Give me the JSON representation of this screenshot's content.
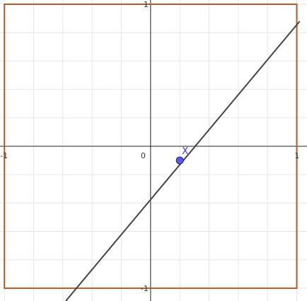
{
  "graph": {
    "x_range": [
      -1.03,
      1.07
    ],
    "y_range": [
      -1.09,
      1.03
    ],
    "gridlines_per_unit": 5,
    "axis_labels": {
      "x_neg": "-1",
      "x_pos": "1",
      "y_pos": "1",
      "y_neg": "-1",
      "origin": "0"
    },
    "square": {
      "corners": [
        [
          -1,
          -1
        ],
        [
          1,
          -1
        ],
        [
          1,
          1
        ],
        [
          -1,
          1
        ]
      ],
      "color": "#B25A2E"
    },
    "line": {
      "through": [
        [
          -0.58,
          -1.09
        ],
        [
          1.02,
          0.88
        ]
      ],
      "color": "#444444"
    },
    "point": {
      "x": 0.2,
      "y": -0.1,
      "label": "X",
      "fill": "#5B5BE8",
      "label_color": "#3A3AD0"
    },
    "colors": {
      "grid": "#E6E6E6",
      "axis": "#222222"
    }
  }
}
